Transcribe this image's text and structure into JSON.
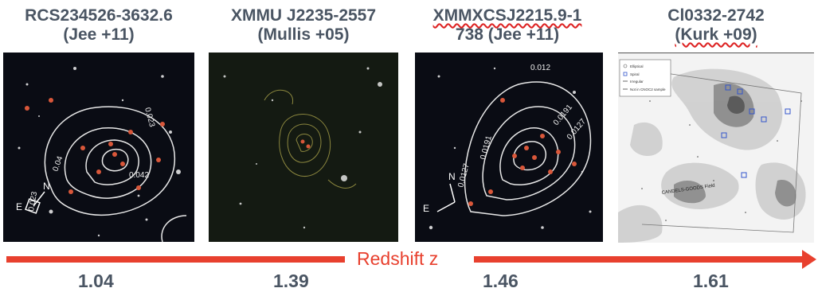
{
  "panels": [
    {
      "title_line1": "RCS234526-3632.6",
      "title_line2": "(Jee +11)",
      "redshift": "1.04",
      "contour_labels": [
        "0.023",
        "0.042",
        "0.023",
        "0.04"
      ],
      "compass": [
        "E",
        "N"
      ]
    },
    {
      "title_line1": "XMMU J2235-2557",
      "title_line2": "(Mullis +05)",
      "redshift": "1.39"
    },
    {
      "title_line1": "XMMXCSJ2215.9-1",
      "title_line2": "738 (Jee +11)",
      "redshift": "1.46",
      "contour_labels": [
        "0.012",
        "0.0191",
        "0.0127",
        "0.0191",
        "0.0127"
      ],
      "compass": [
        "E",
        "N"
      ]
    },
    {
      "title_line1": "Cl0332-2742",
      "title_line2": "(Kurk +09)",
      "redshift": "1.61",
      "legend": [
        "Elliptical",
        "Spiral",
        "Irregular",
        "Not in CNOC2 sample"
      ],
      "field_label": "CANDELS-GOODS Field"
    }
  ],
  "axis_label": "Redshift z",
  "colors": {
    "arrow": "#e8402e",
    "title": "#4a5563",
    "galaxy": "#d9573a"
  }
}
